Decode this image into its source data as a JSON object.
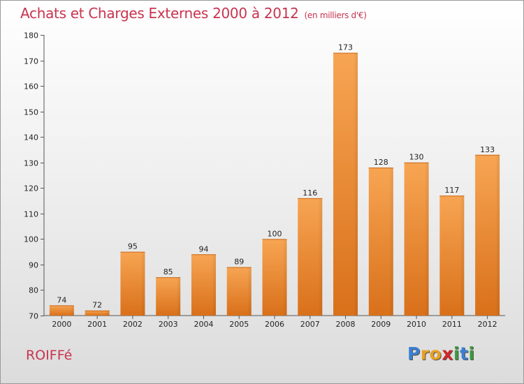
{
  "header": {
    "title": "Achats et Charges Externes 2000 à 2012",
    "subtitle": "(en milliers d'€)"
  },
  "footer": {
    "city": "ROIFFé",
    "logo_letters": [
      "P",
      "r",
      "o",
      "x",
      "i",
      "t",
      "i"
    ],
    "logo_colors": [
      "#3a7fd0",
      "#e8a020",
      "#e8a020",
      "#d02828",
      "#3a9a3a",
      "#3a7fd0",
      "#3a9a3a"
    ]
  },
  "chart_data": {
    "type": "bar",
    "title": "Achats et Charges Externes 2000 à 2012",
    "subtitle": "(en milliers d'€)",
    "categories": [
      "2000",
      "2001",
      "2002",
      "2003",
      "2004",
      "2005",
      "2006",
      "2007",
      "2008",
      "2009",
      "2010",
      "2011",
      "2012"
    ],
    "values": [
      74,
      72,
      95,
      85,
      94,
      89,
      100,
      116,
      173,
      128,
      130,
      117,
      133
    ],
    "ylim": [
      70,
      180
    ],
    "yticks": [
      70,
      80,
      90,
      100,
      110,
      120,
      130,
      140,
      150,
      160,
      170,
      180
    ],
    "grid": false,
    "bar_color": "#f0902e",
    "bar_color_dark": "#d9721a"
  }
}
